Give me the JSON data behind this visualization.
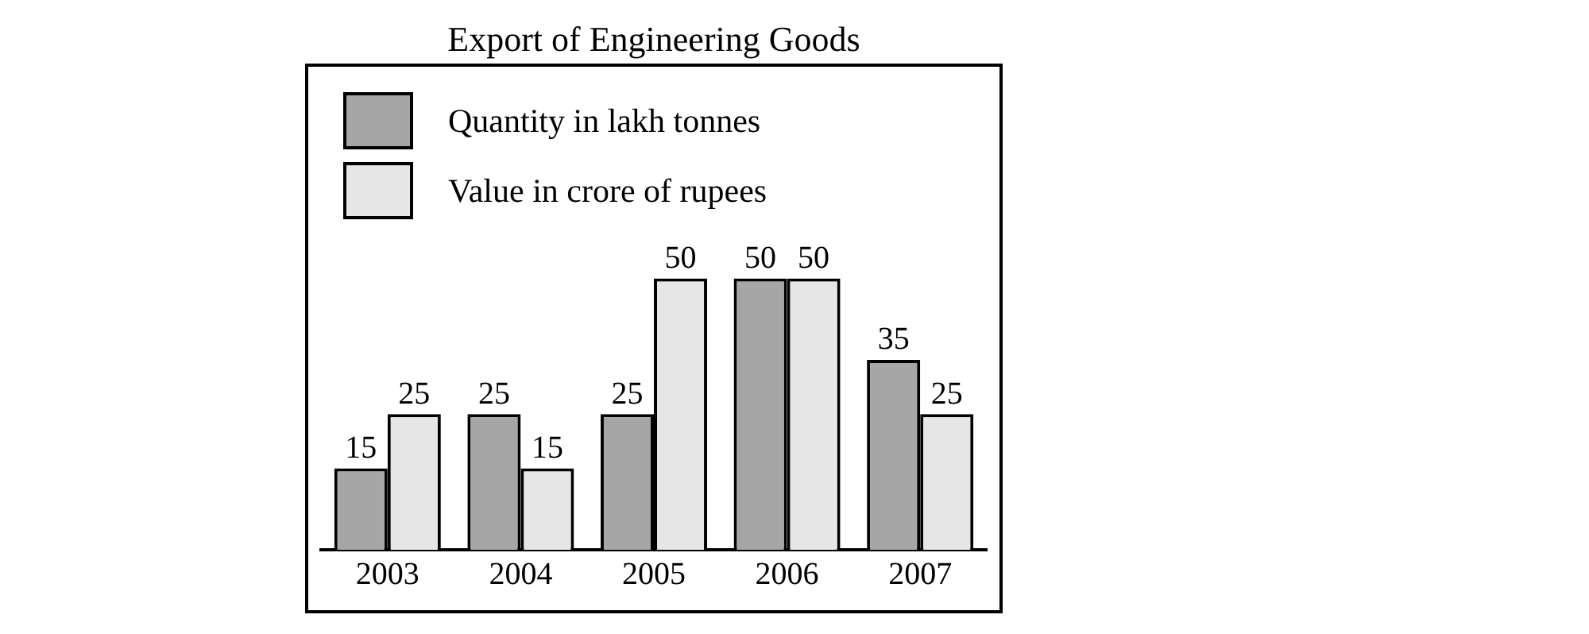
{
  "chart_data": {
    "type": "bar",
    "title": "Export of Engineering Goods",
    "categories": [
      "2003",
      "2004",
      "2005",
      "2006",
      "2007"
    ],
    "series": [
      {
        "name": "Quantity in lakh tonnes",
        "color": "#a6a6a6",
        "values": [
          15,
          25,
          25,
          50,
          35
        ]
      },
      {
        "name": "Value in crore of rupees",
        "color": "#e6e6e6",
        "values": [
          25,
          15,
          50,
          50,
          25
        ]
      }
    ],
    "data_labels": true,
    "legend": "top left",
    "grid": false,
    "tick_labels": "x"
  }
}
